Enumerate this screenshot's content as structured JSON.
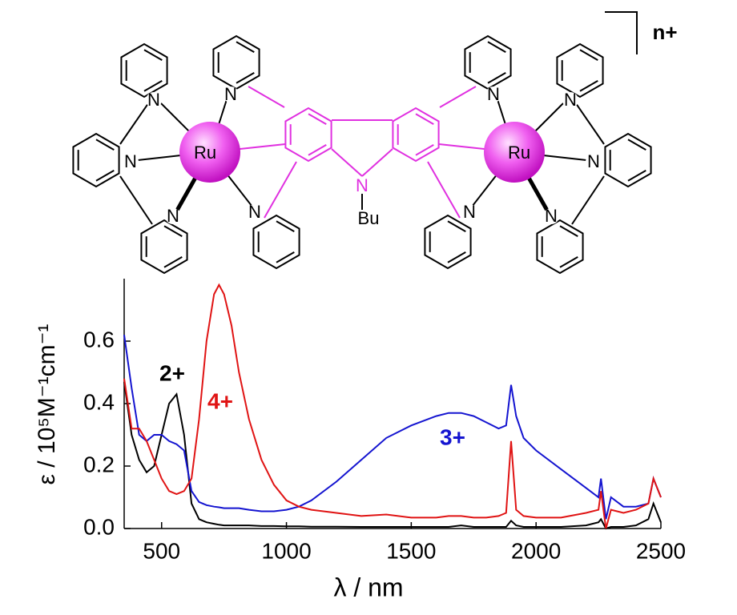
{
  "structure": {
    "charge": "n+",
    "metals": [
      "Ru",
      "Ru"
    ],
    "atoms": [
      "N",
      "N",
      "N",
      "N",
      "N",
      "N",
      "N",
      "N",
      "N",
      "N",
      "N"
    ],
    "substituent": "Bu"
  },
  "chart_data": {
    "type": "line",
    "xlabel": "λ / nm",
    "ylabel": "ε / 10⁵M⁻¹cm⁻¹",
    "x": [
      350,
      380,
      410,
      440,
      470,
      500,
      530,
      560,
      590,
      620,
      650,
      680,
      710,
      730,
      750,
      780,
      810,
      850,
      900,
      950,
      1000,
      1050,
      1100,
      1200,
      1300,
      1400,
      1500,
      1600,
      1650,
      1700,
      1750,
      1800,
      1850,
      1880,
      1900,
      1920,
      1950,
      2000,
      2100,
      2200,
      2250,
      2260,
      2280,
      2300,
      2350,
      2400,
      2450,
      2470,
      2500
    ],
    "series": [
      {
        "name": "2+",
        "color": "#000000",
        "values": [
          0.47,
          0.3,
          0.22,
          0.18,
          0.2,
          0.3,
          0.4,
          0.43,
          0.3,
          0.08,
          0.03,
          0.02,
          0.015,
          0.012,
          0.01,
          0.01,
          0.01,
          0.01,
          0.008,
          0.008,
          0.007,
          0.007,
          0.006,
          0.006,
          0.005,
          0.005,
          0.005,
          0.005,
          0.005,
          0.01,
          0.005,
          0.005,
          0.005,
          0.005,
          0.025,
          0.01,
          0.005,
          0.005,
          0.005,
          0.01,
          0.02,
          0.03,
          0,
          0.005,
          0.005,
          0.01,
          0.03,
          0.08,
          0.02
        ]
      },
      {
        "name": "3+",
        "color": "#1414d0",
        "values": [
          0.62,
          0.45,
          0.3,
          0.28,
          0.3,
          0.3,
          0.28,
          0.27,
          0.25,
          0.12,
          0.085,
          0.075,
          0.07,
          0.068,
          0.065,
          0.065,
          0.065,
          0.06,
          0.055,
          0.055,
          0.06,
          0.07,
          0.09,
          0.15,
          0.22,
          0.29,
          0.33,
          0.36,
          0.37,
          0.37,
          0.36,
          0.34,
          0.32,
          0.33,
          0.46,
          0.36,
          0.29,
          0.25,
          0.19,
          0.13,
          0.1,
          0.16,
          0.03,
          0.1,
          0.07,
          0.07,
          0.08,
          0.16,
          0.1
        ]
      },
      {
        "name": "4+",
        "color": "#e01414",
        "values": [
          0.48,
          0.32,
          0.32,
          0.28,
          0.22,
          0.16,
          0.12,
          0.11,
          0.12,
          0.16,
          0.35,
          0.6,
          0.75,
          0.78,
          0.75,
          0.65,
          0.5,
          0.35,
          0.22,
          0.14,
          0.09,
          0.07,
          0.06,
          0.05,
          0.04,
          0.045,
          0.035,
          0.035,
          0.04,
          0.04,
          0.035,
          0.035,
          0.04,
          0.05,
          0.28,
          0.06,
          0.04,
          0.035,
          0.035,
          0.05,
          0.06,
          0.12,
          0,
          0.06,
          0.05,
          0.06,
          0.08,
          0.16,
          0.1
        ]
      }
    ],
    "xlim": [
      350,
      2500
    ],
    "xticks": [
      500,
      1000,
      1500,
      2000,
      2500
    ],
    "ylim": [
      0,
      0.8
    ],
    "yticks": [
      {
        "value": 0,
        "label": "0.0"
      },
      0.2,
      0.4,
      0.6
    ]
  }
}
